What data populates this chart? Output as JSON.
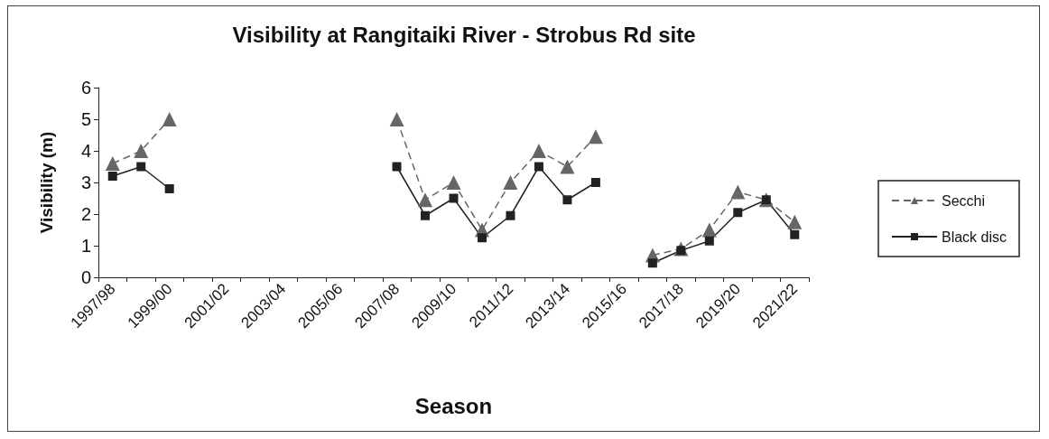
{
  "chart_data": {
    "type": "line",
    "title": "Visibility at Rangitaiki River - Strobus Rd site",
    "xlabel": "Season",
    "ylabel": "Visibility (m)",
    "categories": [
      "1997/98",
      null,
      "1999/00",
      null,
      "2001/02",
      null,
      "2003/04",
      null,
      "2005/06",
      null,
      "2007/08",
      null,
      "2009/10",
      null,
      "2011/12",
      null,
      "2013/14",
      null,
      "2015/16",
      null,
      "2017/18",
      null,
      "2019/20",
      null,
      "2021/22"
    ],
    "series": [
      {
        "name": "Secchi",
        "color": "#666666",
        "marker": "triangle",
        "line_style": "dashed",
        "values": [
          3.6,
          4.0,
          5.0,
          null,
          null,
          null,
          null,
          null,
          null,
          null,
          5.0,
          2.45,
          3.0,
          1.5,
          3.0,
          4.0,
          3.5,
          4.45,
          null,
          0.7,
          0.9,
          1.5,
          2.7,
          2.45,
          1.75
        ]
      },
      {
        "name": "Black disc",
        "color": "#222222",
        "marker": "square",
        "line_style": "solid",
        "values": [
          3.2,
          3.5,
          2.8,
          null,
          null,
          null,
          null,
          null,
          null,
          null,
          3.5,
          1.95,
          2.5,
          1.25,
          1.95,
          3.5,
          2.45,
          3.0,
          null,
          0.45,
          0.85,
          1.15,
          2.05,
          2.45,
          1.35
        ]
      }
    ],
    "ylim": [
      0,
      6
    ],
    "yticks": [
      0,
      1,
      2,
      3,
      4,
      5,
      6
    ],
    "grid": false,
    "legend": "right"
  }
}
